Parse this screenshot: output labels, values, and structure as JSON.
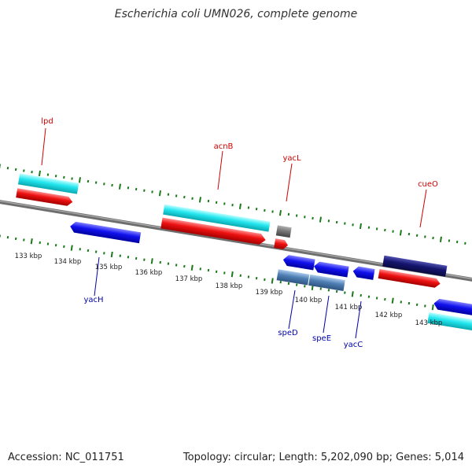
{
  "title": "Escherichia coli UMN026, complete genome",
  "footer": {
    "accession": "Accession: NC_011751",
    "topology": "Topology: circular; Length: 5,202,090 bp; Genes: 5,014"
  },
  "scale_labels": [
    "133 kbp",
    "134 kbp",
    "135 kbp",
    "136 kbp",
    "137 kbp",
    "138 kbp",
    "139 kbp",
    "140 kbp",
    "141 kbp",
    "142 kbp",
    "143 kbp"
  ],
  "upper_gene_labels": [
    "lpd",
    "acnB",
    "yacL",
    "cueO"
  ],
  "lower_gene_labels": [
    "yacH",
    "speD",
    "speE",
    "yacC"
  ],
  "colors": {
    "cyan": "#22e6ee",
    "red": "#ee1111",
    "blue": "#1111ee",
    "navy": "#14146e",
    "steel": "#4f7fb4",
    "gray": "#777777",
    "backbone": "#8a8a8a",
    "tick": "#1a7a1a",
    "upper_label": "#cc0000",
    "lower_label": "#0000aa"
  }
}
